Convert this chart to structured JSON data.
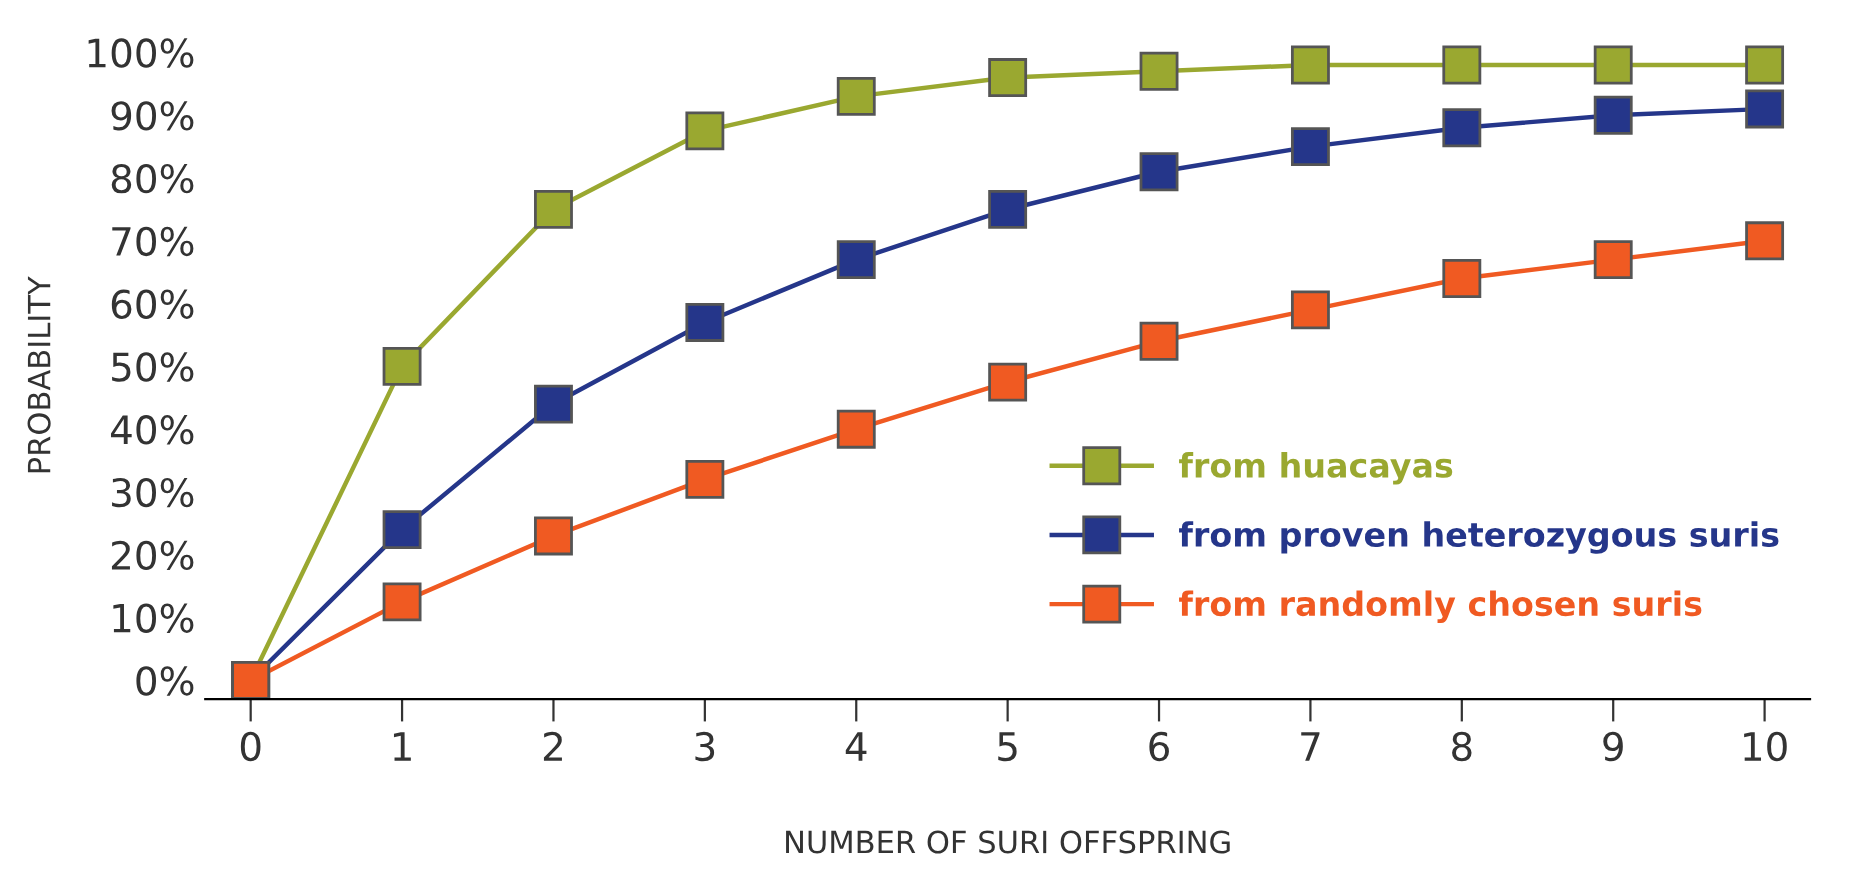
{
  "chart_data": {
    "type": "line",
    "xlabel": "NUMBER OF SURI OFFSPRING",
    "ylabel": "PROBABILITY",
    "x": [
      0,
      1,
      2,
      3,
      4,
      5,
      6,
      7,
      8,
      9,
      10
    ],
    "series": [
      {
        "name": "from huacayas",
        "color": "#9aa830",
        "values": [
          0,
          50,
          75,
          87.5,
          93,
          96,
          97,
          98,
          98,
          98,
          98
        ]
      },
      {
        "name": "from proven heterozygous suris",
        "color": "#25368a",
        "values": [
          0,
          24,
          44,
          57,
          67,
          75,
          81,
          85,
          88,
          90,
          91
        ]
      },
      {
        "name": "from randomly chosen suris",
        "color": "#f05a22",
        "values": [
          0,
          12.5,
          23,
          32,
          40,
          47.5,
          54,
          59,
          64,
          67,
          70
        ]
      }
    ],
    "xlim": [
      -0.3,
      10.3
    ],
    "ylim": [
      -3,
      100
    ],
    "xticks": [
      0,
      1,
      2,
      3,
      4,
      5,
      6,
      7,
      8,
      9,
      10
    ],
    "yticks": [
      {
        "value": 0,
        "label": "0%"
      },
      {
        "value": 10,
        "label": "10%"
      },
      {
        "value": 20,
        "label": "20%"
      },
      {
        "value": 30,
        "label": "30%"
      },
      {
        "value": 40,
        "label": "40%"
      },
      {
        "value": 50,
        "label": "50%"
      },
      {
        "value": 60,
        "label": "60%"
      },
      {
        "value": 70,
        "label": "70%"
      },
      {
        "value": 80,
        "label": "80%"
      },
      {
        "value": 90,
        "label": "90%"
      },
      {
        "value": 100,
        "label": "100%"
      }
    ],
    "marker": "square",
    "line_style": "solid",
    "legend": "right",
    "grid": false
  }
}
